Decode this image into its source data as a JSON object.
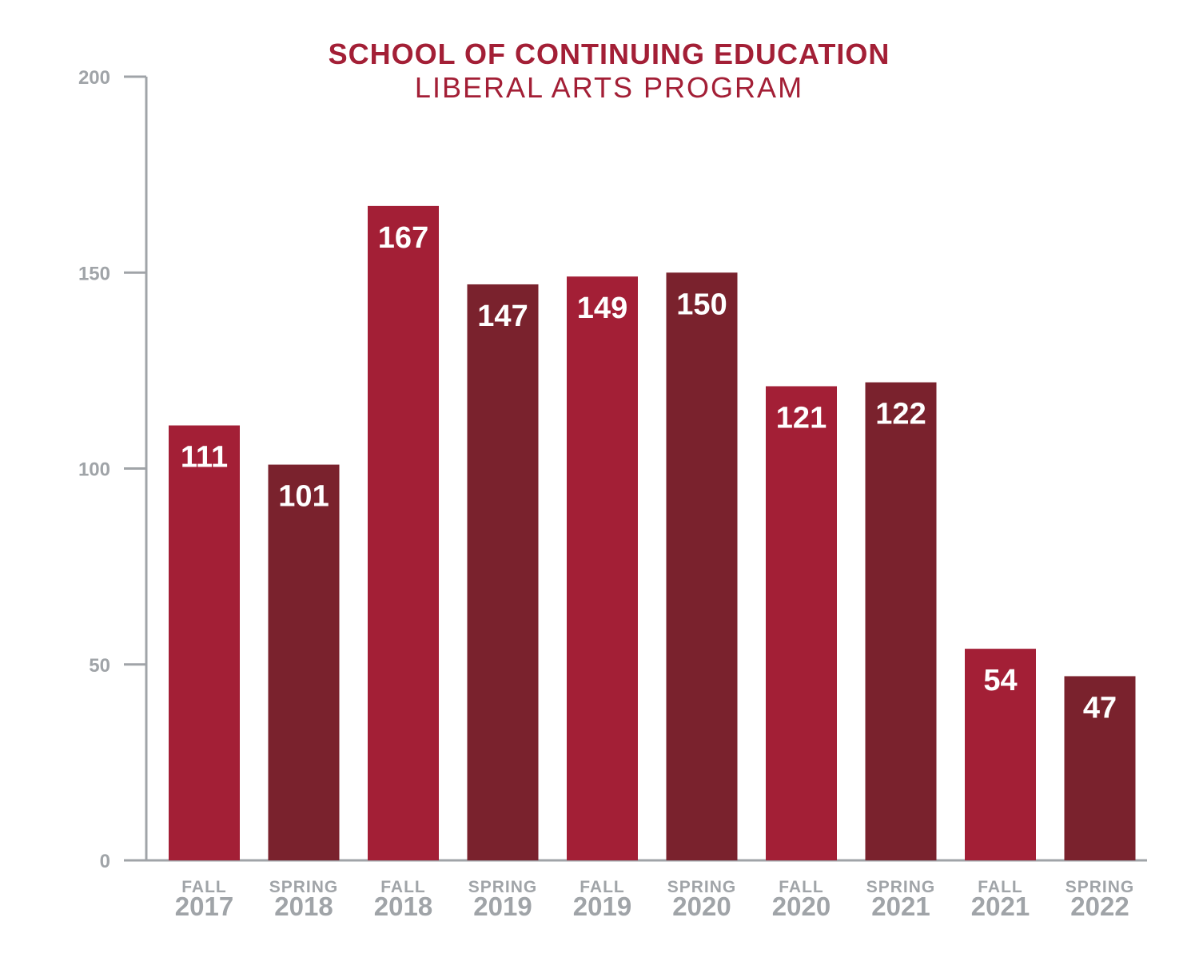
{
  "chart_data": {
    "type": "bar",
    "title": "SCHOOL OF CONTINUING EDUCATION",
    "subtitle": "LIBERAL ARTS PROGRAM",
    "xlabel": "",
    "ylabel": "",
    "ylim": [
      0,
      200
    ],
    "yticks": [
      0,
      50,
      100,
      150,
      200
    ],
    "grid": false,
    "categories": [
      {
        "term": "FALL",
        "year": "2017"
      },
      {
        "term": "SPRING",
        "year": "2018"
      },
      {
        "term": "FALL",
        "year": "2018"
      },
      {
        "term": "SPRING",
        "year": "2019"
      },
      {
        "term": "FALL",
        "year": "2019"
      },
      {
        "term": "SPRING",
        "year": "2020"
      },
      {
        "term": "FALL",
        "year": "2020"
      },
      {
        "term": "SPRING",
        "year": "2021"
      },
      {
        "term": "FALL",
        "year": "2021"
      },
      {
        "term": "SPRING",
        "year": "2022"
      }
    ],
    "values": [
      111,
      101,
      167,
      147,
      149,
      150,
      121,
      122,
      54,
      47
    ],
    "colors": {
      "fall": "#a31f36",
      "spring": "#7a222d",
      "axis": "#a0a4a8"
    }
  }
}
